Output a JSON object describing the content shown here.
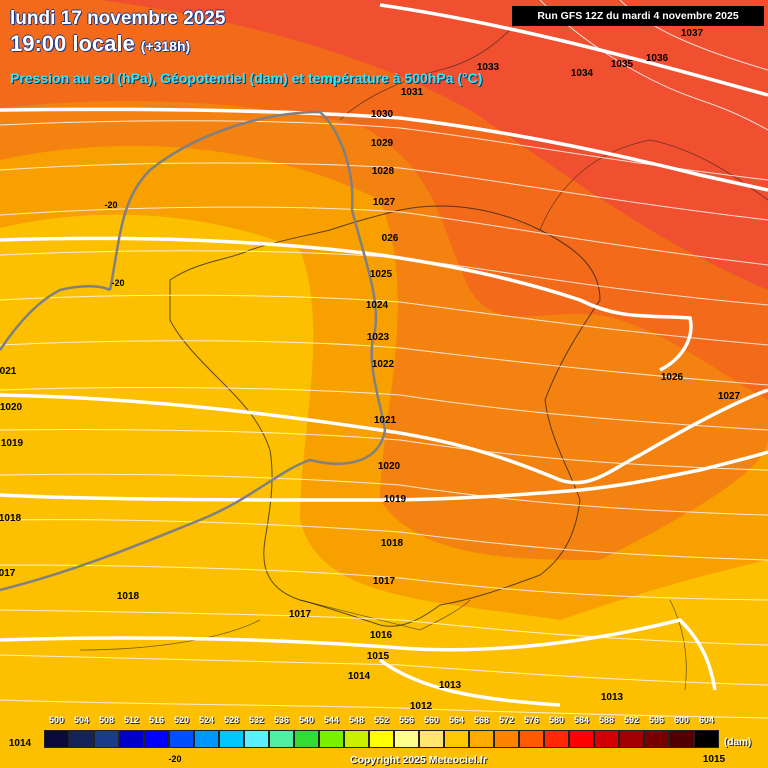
{
  "header": {
    "title_line1": "lundi 17 novembre 2025",
    "title_line2": "19:00 locale",
    "lead_time": "(+318h)",
    "subtitle": "Pression au sol (hPa), Géopotentiel (dam) et température à 500hPa (°C)",
    "run_info": "Run GFS 12Z du mardi 4 novembre 2025"
  },
  "colors": {
    "zone_red": "#f05030",
    "zone_red_orange": "#f26a1a",
    "zone_orange": "#f48210",
    "zone_amber": "#f8a000",
    "zone_yellow": "#fcc000",
    "isobar": "#ffffff",
    "isotherm": "#808080"
  },
  "isobar_labels": [
    {
      "text": "1037"
    },
    {
      "text": "1036"
    },
    {
      "text": "1035"
    },
    {
      "text": "1034"
    },
    {
      "text": "1033"
    },
    {
      "text": "1031"
    },
    {
      "text": "1030"
    },
    {
      "text": "1029"
    },
    {
      "text": "1028"
    },
    {
      "text": "1027"
    },
    {
      "text": "026"
    },
    {
      "text": "1025"
    },
    {
      "text": "1024"
    },
    {
      "text": "1023"
    },
    {
      "text": "1022"
    },
    {
      "text": "1021"
    },
    {
      "text": "1020"
    },
    {
      "text": "1019"
    },
    {
      "text": "1018"
    },
    {
      "text": "1017"
    },
    {
      "text": "1016"
    },
    {
      "text": "1015"
    },
    {
      "text": "1014"
    },
    {
      "text": "1013"
    },
    {
      "text": "1012"
    },
    {
      "text": "1026"
    },
    {
      "text": "1027"
    },
    {
      "text": "021"
    },
    {
      "text": "1020"
    },
    {
      "text": "1019"
    },
    {
      "text": "1018"
    },
    {
      "text": "017"
    },
    {
      "text": "1018"
    },
    {
      "text": "1017"
    },
    {
      "text": "1013"
    },
    {
      "text": "1014"
    },
    {
      "text": "1015"
    }
  ],
  "isotherm_labels": [
    {
      "text": "-20"
    },
    {
      "text": "-20"
    },
    {
      "text": "-20"
    }
  ],
  "legend": {
    "unit": "(dam)",
    "items": [
      {
        "label": "500",
        "color": "#0a0a3c"
      },
      {
        "label": "504",
        "color": "#14245a"
      },
      {
        "label": "508",
        "color": "#1a3a8a"
      },
      {
        "label": "512",
        "color": "#0000c8"
      },
      {
        "label": "516",
        "color": "#0000ff"
      },
      {
        "label": "520",
        "color": "#0050ff"
      },
      {
        "label": "524",
        "color": "#0096ff"
      },
      {
        "label": "528",
        "color": "#00c8ff"
      },
      {
        "label": "532",
        "color": "#5af0ff"
      },
      {
        "label": "536",
        "color": "#50f0a0"
      },
      {
        "label": "540",
        "color": "#32dc32"
      },
      {
        "label": "544",
        "color": "#78f000"
      },
      {
        "label": "548",
        "color": "#c8f000"
      },
      {
        "label": "552",
        "color": "#ffff00"
      },
      {
        "label": "556",
        "color": "#ffff8c"
      },
      {
        "label": "560",
        "color": "#ffe66e"
      },
      {
        "label": "564",
        "color": "#ffc800"
      },
      {
        "label": "568",
        "color": "#ffaa00"
      },
      {
        "label": "572",
        "color": "#ff8200"
      },
      {
        "label": "576",
        "color": "#ff5a00"
      },
      {
        "label": "580",
        "color": "#ff2800"
      },
      {
        "label": "584",
        "color": "#ff0000"
      },
      {
        "label": "588",
        "color": "#d20000"
      },
      {
        "label": "592",
        "color": "#a00000"
      },
      {
        "label": "596",
        "color": "#780000"
      },
      {
        "label": "600",
        "color": "#500000"
      },
      {
        "label": "604",
        "color": "#000000"
      }
    ]
  },
  "footer": {
    "copyright": "Copyright 2025 Meteociel.fr"
  }
}
